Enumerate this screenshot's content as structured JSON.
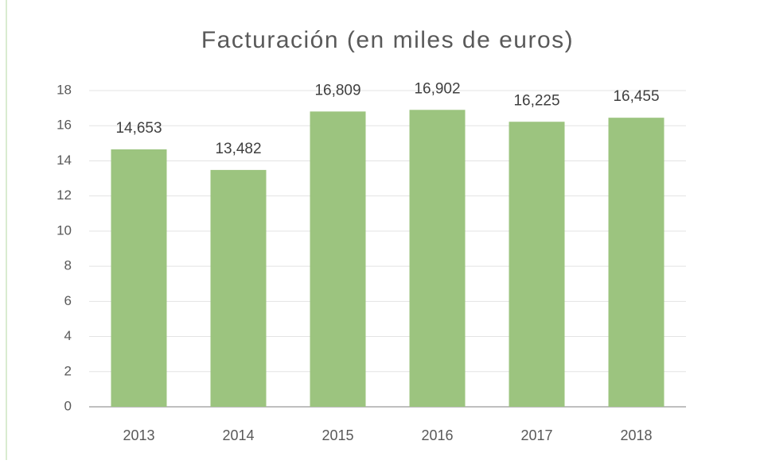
{
  "chart_data": {
    "type": "bar",
    "title": "Facturación (en miles de euros)",
    "categories": [
      "2013",
      "2014",
      "2015",
      "2016",
      "2017",
      "2018"
    ],
    "values": [
      14.653,
      13.482,
      16.809,
      16.902,
      16.225,
      16.455
    ],
    "value_labels": [
      "14,653",
      "13,482",
      "16,809",
      "16,902",
      "16,225",
      "16,455"
    ],
    "color": "#9cc47f",
    "ylim": [
      0,
      18
    ],
    "yticks": [
      0,
      2,
      4,
      6,
      8,
      10,
      12,
      14,
      16,
      18
    ],
    "grid": true
  }
}
